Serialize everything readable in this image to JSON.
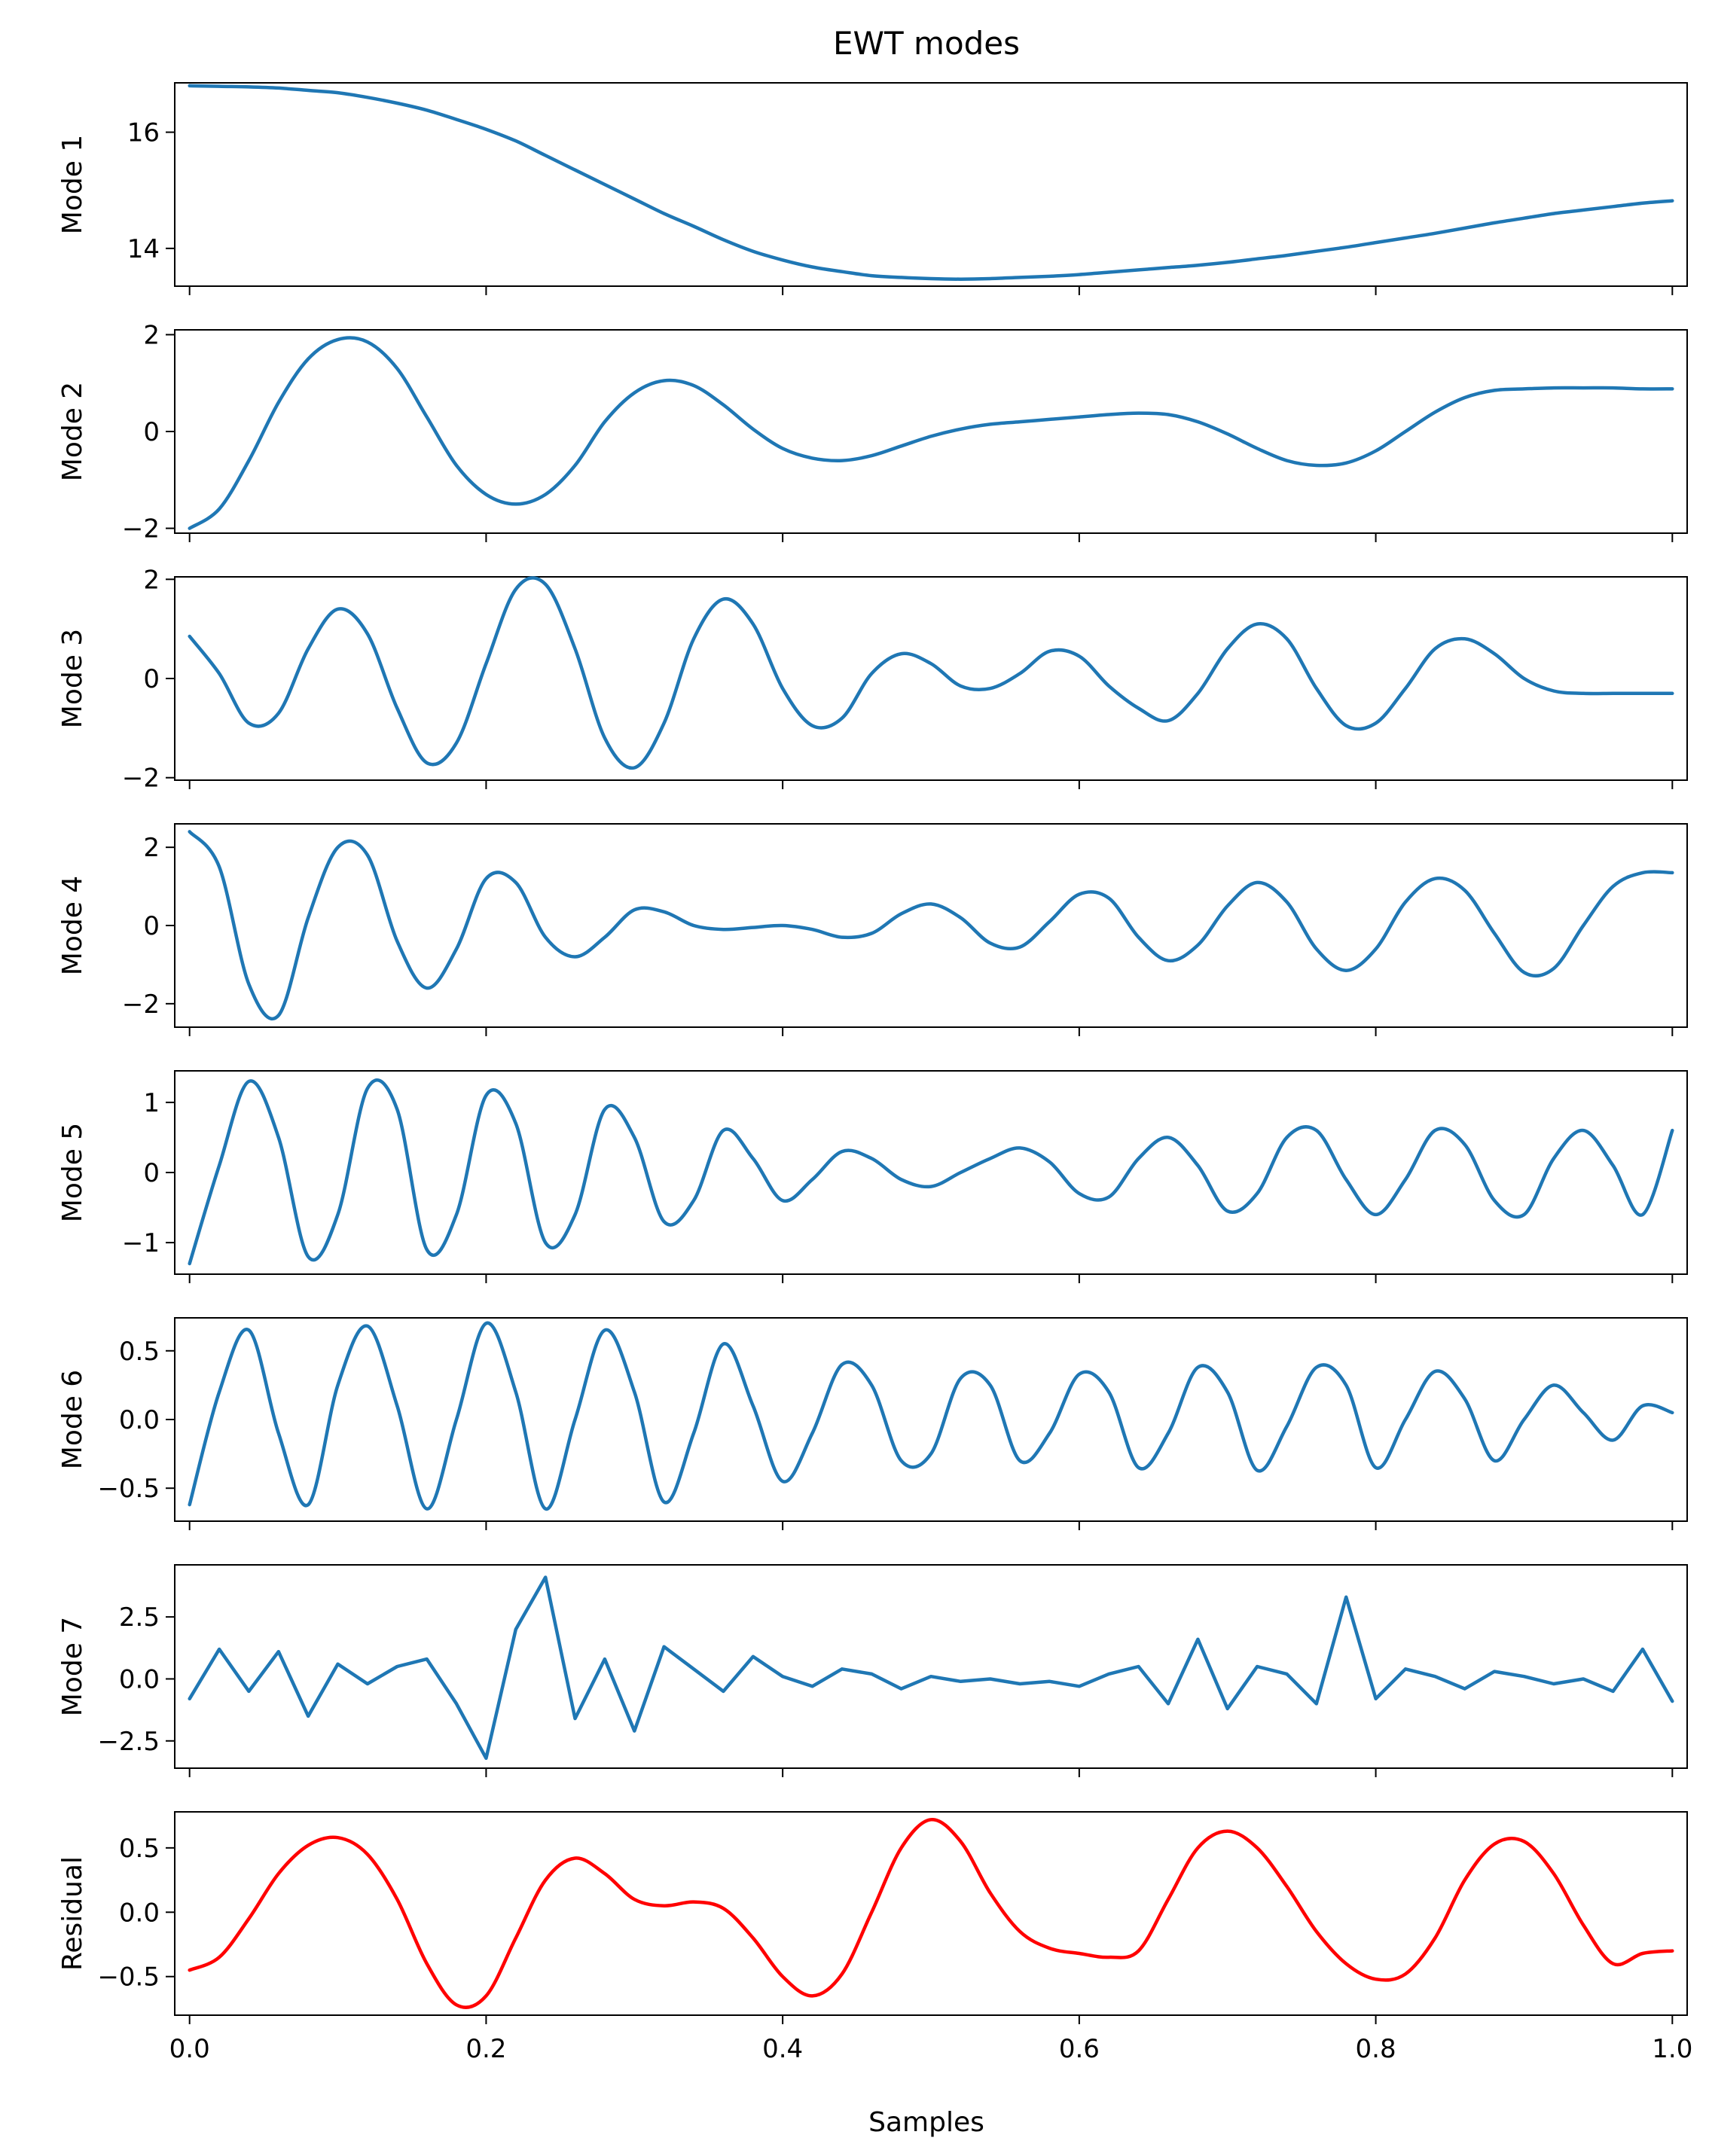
{
  "chart_data": {
    "type": "line",
    "title": "EWT modes",
    "xlabel": "Samples",
    "xlim": [
      -0.01,
      1.01
    ],
    "xticks": [
      0.0,
      0.2,
      0.4,
      0.6,
      0.8,
      1.0
    ],
    "xtick_labels": [
      "0.0",
      "0.2",
      "0.4",
      "0.6",
      "0.8",
      "1.0"
    ],
    "colors": {
      "mode": "#1f77b4",
      "residual": "#ff0000"
    },
    "x": [
      0,
      0.02,
      0.04,
      0.06,
      0.08,
      0.1,
      0.12,
      0.14,
      0.16,
      0.18,
      0.2,
      0.22,
      0.24,
      0.26,
      0.28,
      0.3,
      0.32,
      0.34,
      0.36,
      0.38,
      0.4,
      0.42,
      0.44,
      0.46,
      0.48,
      0.5,
      0.52,
      0.54,
      0.56,
      0.58,
      0.6,
      0.62,
      0.64,
      0.66,
      0.68,
      0.7,
      0.72,
      0.74,
      0.76,
      0.78,
      0.8,
      0.82,
      0.84,
      0.86,
      0.88,
      0.9,
      0.92,
      0.94,
      0.96,
      0.98,
      1.0
    ],
    "panels": [
      {
        "ylabel": "Mode 1",
        "color": "#1f77b4",
        "ylim": [
          13.35,
          16.85
        ],
        "yticks": [
          14,
          16
        ],
        "ytick_labels": [
          "14",
          "16"
        ],
        "values": [
          16.8,
          16.79,
          16.78,
          16.76,
          16.72,
          16.68,
          16.6,
          16.5,
          16.38,
          16.22,
          16.05,
          15.85,
          15.6,
          15.35,
          15.1,
          14.85,
          14.6,
          14.38,
          14.15,
          13.95,
          13.8,
          13.68,
          13.6,
          13.53,
          13.5,
          13.48,
          13.47,
          13.48,
          13.5,
          13.52,
          13.55,
          13.59,
          13.63,
          13.67,
          13.71,
          13.76,
          13.82,
          13.88,
          13.95,
          14.02,
          14.1,
          14.18,
          14.26,
          14.35,
          14.44,
          14.52,
          14.6,
          14.66,
          14.72,
          14.78,
          14.82
        ]
      },
      {
        "ylabel": "Mode 2",
        "color": "#1f77b4",
        "ylim": [
          -2.1,
          2.1
        ],
        "yticks": [
          -2,
          0,
          2
        ],
        "ytick_labels": [
          "−2",
          "0",
          "2"
        ],
        "values": [
          -2.0,
          -1.6,
          -0.6,
          0.6,
          1.5,
          1.9,
          1.85,
          1.3,
          0.3,
          -0.7,
          -1.3,
          -1.5,
          -1.3,
          -0.7,
          0.2,
          0.8,
          1.05,
          0.95,
          0.55,
          0.05,
          -0.35,
          -0.55,
          -0.6,
          -0.5,
          -0.3,
          -0.1,
          0.05,
          0.15,
          0.2,
          0.25,
          0.3,
          0.35,
          0.38,
          0.35,
          0.2,
          -0.05,
          -0.35,
          -0.6,
          -0.7,
          -0.65,
          -0.4,
          0.0,
          0.4,
          0.7,
          0.85,
          0.88,
          0.9,
          0.9,
          0.9,
          0.88,
          0.88
        ]
      },
      {
        "ylabel": "Mode 3",
        "color": "#1f77b4",
        "ylim": [
          -2.05,
          2.05
        ],
        "yticks": [
          -2,
          0,
          2
        ],
        "ytick_labels": [
          "−2",
          "0",
          "2"
        ],
        "values": [
          0.85,
          0.1,
          -0.9,
          -0.7,
          0.6,
          1.4,
          0.9,
          -0.6,
          -1.7,
          -1.3,
          0.3,
          1.8,
          1.9,
          0.6,
          -1.2,
          -1.8,
          -0.9,
          0.8,
          1.6,
          1.1,
          -0.2,
          -0.95,
          -0.8,
          0.1,
          0.5,
          0.3,
          -0.15,
          -0.2,
          0.1,
          0.55,
          0.45,
          -0.15,
          -0.6,
          -0.85,
          -0.3,
          0.6,
          1.1,
          0.8,
          -0.2,
          -0.95,
          -0.9,
          -0.2,
          0.6,
          0.8,
          0.5,
          0.0,
          -0.25,
          -0.3,
          -0.3,
          -0.3,
          -0.3
        ]
      },
      {
        "ylabel": "Mode 4",
        "color": "#1f77b4",
        "ylim": [
          -2.6,
          2.6
        ],
        "yticks": [
          -2,
          0,
          2
        ],
        "ytick_labels": [
          "−2",
          "0",
          "2"
        ],
        "values": [
          2.4,
          1.5,
          -1.5,
          -2.3,
          0.2,
          2.0,
          1.8,
          -0.4,
          -1.6,
          -0.6,
          1.2,
          1.1,
          -0.3,
          -0.8,
          -0.3,
          0.4,
          0.35,
          0.0,
          -0.1,
          -0.05,
          0.0,
          -0.1,
          -0.3,
          -0.2,
          0.3,
          0.55,
          0.2,
          -0.45,
          -0.55,
          0.1,
          0.8,
          0.7,
          -0.3,
          -0.9,
          -0.5,
          0.5,
          1.1,
          0.6,
          -0.6,
          -1.15,
          -0.6,
          0.6,
          1.2,
          0.9,
          -0.2,
          -1.2,
          -1.1,
          0.0,
          1.0,
          1.35,
          1.35
        ]
      },
      {
        "ylabel": "Mode 5",
        "color": "#1f77b4",
        "ylim": [
          -1.45,
          1.45
        ],
        "yticks": [
          -1,
          0,
          1
        ],
        "ytick_labels": [
          "−1",
          "0",
          "1"
        ],
        "values": [
          -1.3,
          0.1,
          1.3,
          0.5,
          -1.2,
          -0.6,
          1.2,
          0.9,
          -1.1,
          -0.6,
          1.1,
          0.7,
          -1.0,
          -0.6,
          0.9,
          0.5,
          -0.7,
          -0.4,
          0.6,
          0.2,
          -0.4,
          -0.1,
          0.3,
          0.2,
          -0.1,
          -0.2,
          0.0,
          0.2,
          0.35,
          0.15,
          -0.3,
          -0.35,
          0.2,
          0.5,
          0.1,
          -0.55,
          -0.3,
          0.5,
          0.6,
          -0.1,
          -0.6,
          -0.1,
          0.6,
          0.4,
          -0.4,
          -0.6,
          0.2,
          0.6,
          0.1,
          -0.6,
          0.6
        ]
      },
      {
        "ylabel": "Mode 6",
        "color": "#1f77b4",
        "ylim": [
          -0.74,
          0.74
        ],
        "yticks": [
          -0.5,
          0.0,
          0.5
        ],
        "ytick_labels": [
          "−0.5",
          "0.0",
          "0.5"
        ],
        "values": [
          -0.62,
          0.2,
          0.65,
          -0.1,
          -0.62,
          0.25,
          0.68,
          0.1,
          -0.65,
          0.0,
          0.7,
          0.2,
          -0.65,
          0.0,
          0.65,
          0.2,
          -0.6,
          -0.1,
          0.55,
          0.1,
          -0.45,
          -0.1,
          0.4,
          0.25,
          -0.3,
          -0.25,
          0.3,
          0.25,
          -0.3,
          -0.1,
          0.33,
          0.2,
          -0.35,
          -0.1,
          0.38,
          0.2,
          -0.37,
          -0.05,
          0.38,
          0.25,
          -0.35,
          0.0,
          0.35,
          0.15,
          -0.3,
          0.0,
          0.25,
          0.05,
          -0.15,
          0.1,
          0.05
        ]
      },
      {
        "ylabel": "Mode 7",
        "color": "#1f77b4",
        "ylim": [
          -3.6,
          4.6
        ],
        "yticks": [
          -2.5,
          0.0,
          2.5
        ],
        "ytick_labels": [
          "−2.5",
          "0.0",
          "2.5"
        ],
        "values": [
          -0.8,
          1.2,
          -0.5,
          1.1,
          -1.5,
          0.6,
          -0.2,
          0.5,
          0.8,
          -1.0,
          -3.2,
          2.0,
          4.1,
          -1.6,
          0.8,
          -2.1,
          1.3,
          0.4,
          -0.5,
          0.9,
          0.1,
          -0.3,
          0.4,
          0.2,
          -0.4,
          0.1,
          -0.1,
          0.0,
          -0.2,
          -0.1,
          -0.3,
          0.2,
          0.5,
          -1.0,
          1.6,
          -1.2,
          0.5,
          0.2,
          -1.0,
          3.3,
          -0.8,
          0.4,
          0.1,
          -0.4,
          0.3,
          0.1,
          -0.2,
          0.0,
          -0.5,
          1.2,
          -0.9
        ]
      },
      {
        "ylabel": "Residual",
        "color": "#ff0000",
        "ylim": [
          -0.8,
          0.78
        ],
        "yticks": [
          -0.5,
          0.0,
          0.5
        ],
        "ytick_labels": [
          "−0.5",
          "0.0",
          "0.5"
        ],
        "values": [
          -0.45,
          -0.35,
          -0.05,
          0.3,
          0.52,
          0.58,
          0.45,
          0.1,
          -0.4,
          -0.72,
          -0.65,
          -0.2,
          0.25,
          0.42,
          0.3,
          0.1,
          0.05,
          0.08,
          0.03,
          -0.2,
          -0.5,
          -0.65,
          -0.48,
          0.0,
          0.5,
          0.72,
          0.55,
          0.15,
          -0.15,
          -0.28,
          -0.32,
          -0.35,
          -0.3,
          0.1,
          0.5,
          0.63,
          0.5,
          0.2,
          -0.15,
          -0.4,
          -0.52,
          -0.48,
          -0.2,
          0.25,
          0.53,
          0.55,
          0.3,
          -0.1,
          -0.4,
          -0.32,
          -0.3
        ]
      }
    ]
  }
}
